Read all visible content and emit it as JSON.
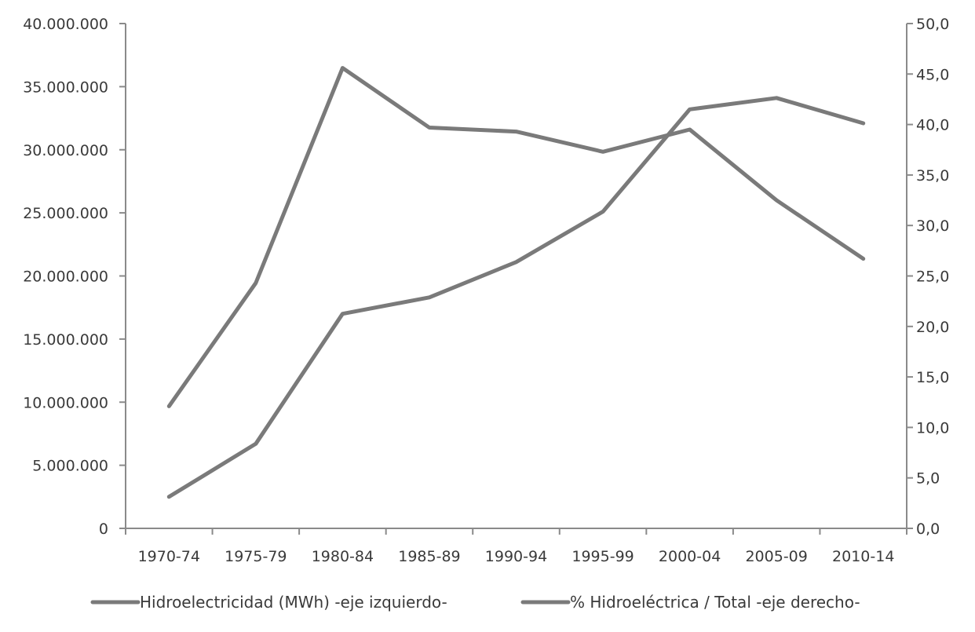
{
  "chart_data": {
    "type": "line",
    "title": "",
    "xlabel": "",
    "ylabel": "",
    "categories": [
      "1970-74",
      "1975-79",
      "1980-84",
      "1985-89",
      "1990-94",
      "1995-99",
      "2000-04",
      "2005-09",
      "2010-14"
    ],
    "ylim": [
      0,
      40000000
    ],
    "y2lim": [
      0,
      50
    ],
    "y_tick_labels": [
      "0",
      "5.000.000",
      "10.000.000",
      "15.000.000",
      "20.000.000",
      "25.000.000",
      "30.000.000",
      "35.000.000",
      "40.000.000"
    ],
    "y_tick_values": [
      0,
      5000000,
      10000000,
      15000000,
      20000000,
      25000000,
      30000000,
      35000000,
      40000000
    ],
    "y2_tick_labels": [
      "0,0",
      "5,0",
      "10,0",
      "15,0",
      "20,0",
      "25,0",
      "30,0",
      "35,0",
      "40,0",
      "45,0",
      "50,0"
    ],
    "y2_tick_values": [
      0,
      5,
      10,
      15,
      20,
      25,
      30,
      35,
      40,
      45,
      50
    ],
    "grid": false,
    "legend_position": "bottom",
    "series": [
      {
        "name": "Hidroelectricidad (MWh) -eje izquierdo-",
        "axis": "left",
        "values": [
          2500000,
          6700000,
          17000000,
          18300000,
          21100000,
          25100000,
          33200000,
          34100000,
          32100000
        ]
      },
      {
        "name": "% Hidroeléctrica / Total -eje derecho-",
        "axis": "right",
        "values": [
          12.1,
          24.3,
          45.6,
          39.7,
          39.3,
          37.3,
          39.5,
          32.5,
          26.7
        ]
      }
    ],
    "line_color": "#7a7a7a"
  }
}
